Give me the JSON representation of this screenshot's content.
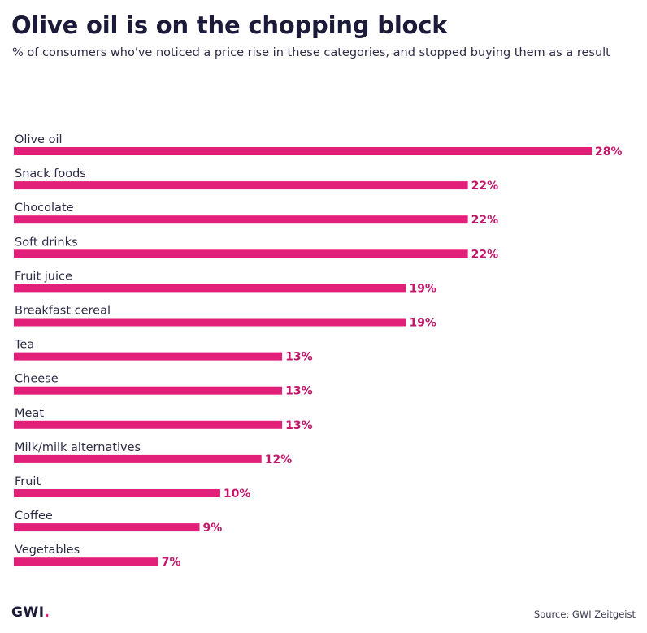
{
  "header": {
    "title": "Olive oil is on the chopping block",
    "subtitle": "% of consumers who've noticed a price rise in these categories, and stopped buying them as a result"
  },
  "footer": {
    "logo_text": "GWI",
    "logo_dot": ".",
    "source": "Source: GWI Zeitgeist"
  },
  "colors": {
    "bar": "#e2207a",
    "value_text": "#c3166a",
    "text": "#1b1a38"
  },
  "chart_data": {
    "type": "bar",
    "orientation": "horizontal",
    "title": "Olive oil is on the chopping block",
    "subtitle": "% of consumers who've noticed a price rise in these categories, and stopped buying them as a result",
    "categories": [
      "Olive oil",
      "Snack foods",
      "Chocolate",
      "Soft drinks",
      "Fruit juice",
      "Breakfast cereal",
      "Tea",
      "Cheese",
      "Meat",
      "Milk/milk alternatives",
      "Fruit",
      "Coffee",
      "Vegetables"
    ],
    "values": [
      28,
      22,
      22,
      22,
      19,
      19,
      13,
      13,
      13,
      12,
      10,
      9,
      7
    ],
    "value_labels": [
      "28%",
      "22%",
      "22%",
      "22%",
      "19%",
      "19%",
      "13%",
      "13%",
      "13%",
      "12%",
      "10%",
      "9%",
      "7%"
    ],
    "unit": "%",
    "xlim": [
      0,
      28
    ],
    "grid": false,
    "legend": "none"
  }
}
